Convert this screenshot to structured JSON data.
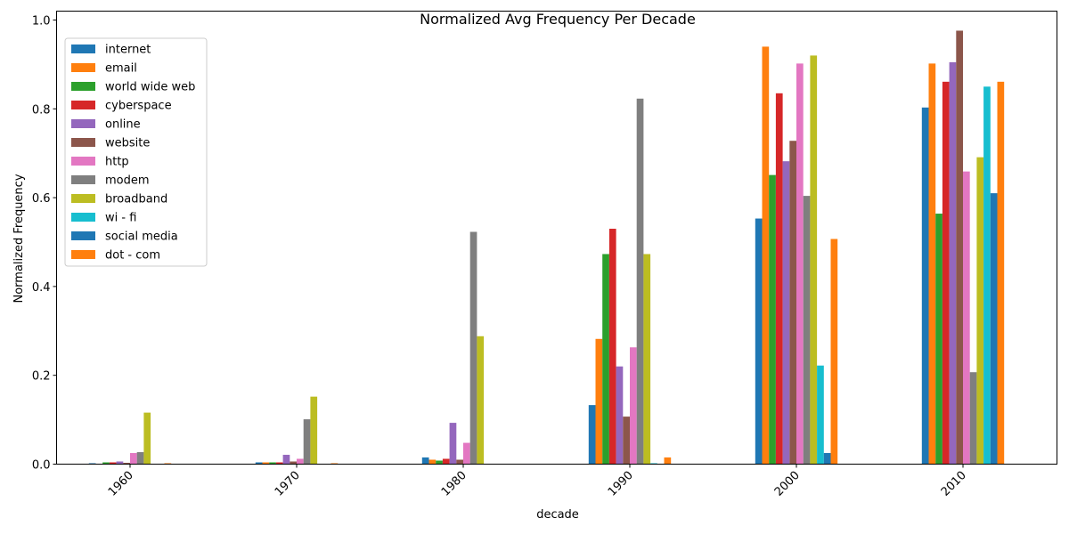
{
  "chart_data": {
    "type": "bar",
    "title": "Normalized Avg Frequency Per Decade",
    "xlabel": "decade",
    "ylabel": "Normalized Frequency",
    "categories": [
      "1960",
      "1970",
      "1980",
      "1990",
      "2000",
      "2010"
    ],
    "ylim": [
      0,
      1.02
    ],
    "yticks": [
      "0.0",
      "0.2",
      "0.4",
      "0.6",
      "0.8",
      "1.0"
    ],
    "grid": false,
    "legend_position": "upper-left",
    "series": [
      {
        "name": "internet",
        "color": "#1f77b4",
        "values": [
          0.002,
          0.004,
          0.015,
          0.133,
          0.553,
          0.803
        ]
      },
      {
        "name": "email",
        "color": "#ff7f0e",
        "values": [
          0.001,
          0.004,
          0.01,
          0.282,
          0.94,
          0.902
        ]
      },
      {
        "name": "world wide web",
        "color": "#2ca02c",
        "values": [
          0.004,
          0.004,
          0.008,
          0.473,
          0.651,
          0.564
        ]
      },
      {
        "name": "cyberspace",
        "color": "#d62728",
        "values": [
          0.004,
          0.004,
          0.012,
          0.53,
          0.835,
          0.861
        ]
      },
      {
        "name": "online",
        "color": "#9467bd",
        "values": [
          0.006,
          0.021,
          0.093,
          0.22,
          0.682,
          0.905
        ]
      },
      {
        "name": "website",
        "color": "#8c564b",
        "values": [
          0.003,
          0.006,
          0.01,
          0.107,
          0.728,
          0.976
        ]
      },
      {
        "name": "http",
        "color": "#e377c2",
        "values": [
          0.025,
          0.012,
          0.048,
          0.263,
          0.902,
          0.659
        ]
      },
      {
        "name": "modem",
        "color": "#7f7f7f",
        "values": [
          0.027,
          0.101,
          0.523,
          0.823,
          0.604,
          0.207
        ]
      },
      {
        "name": "broadband",
        "color": "#bcbd22",
        "values": [
          0.116,
          0.152,
          0.288,
          0.473,
          0.92,
          0.691
        ]
      },
      {
        "name": "wi - fi",
        "color": "#17becf",
        "values": [
          0,
          0,
          0,
          0.002,
          0.222,
          0.85
        ]
      },
      {
        "name": "social media",
        "color": "#1f77b4",
        "values": [
          0,
          0,
          0,
          0,
          0.025,
          0.61
        ]
      },
      {
        "name": "dot - com",
        "color": "#ff7f0e",
        "values": [
          0.002,
          0.002,
          0,
          0.015,
          0.507,
          0.861
        ]
      }
    ]
  }
}
